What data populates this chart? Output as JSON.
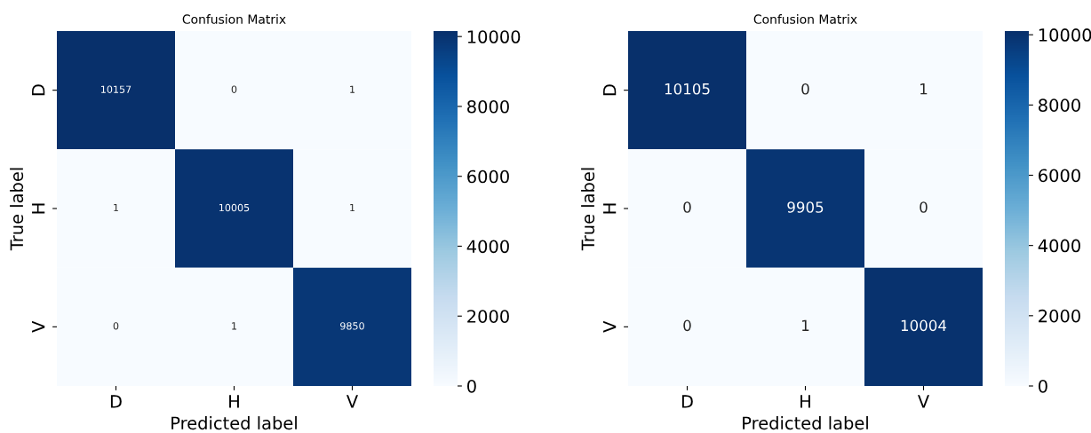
{
  "chart_data": [
    {
      "type": "heatmap",
      "title": "Confusion Matrix",
      "xlabel": "Predicted label",
      "ylabel": "True label",
      "categories": [
        "D",
        "H",
        "V"
      ],
      "y_categories": [
        "D",
        "H",
        "V"
      ],
      "cells": [
        [
          10157,
          0,
          1
        ],
        [
          1,
          10005,
          1
        ],
        [
          0,
          1,
          9850
        ]
      ],
      "clim": [
        0,
        10157
      ],
      "cticks": [
        0,
        2000,
        4000,
        6000,
        8000,
        10000
      ],
      "data_labels": true
    },
    {
      "type": "heatmap",
      "title": "Confusion Matrix",
      "xlabel": "Predicted label",
      "ylabel": "True label",
      "categories": [
        "D",
        "H",
        "V"
      ],
      "y_categories": [
        "D",
        "H",
        "V"
      ],
      "cells": [
        [
          10105,
          0,
          1
        ],
        [
          0,
          9905,
          0
        ],
        [
          0,
          1,
          10004
        ]
      ],
      "clim": [
        0,
        10105
      ],
      "cticks": [
        0,
        2000,
        4000,
        6000,
        8000,
        10000
      ],
      "data_labels": true
    }
  ]
}
